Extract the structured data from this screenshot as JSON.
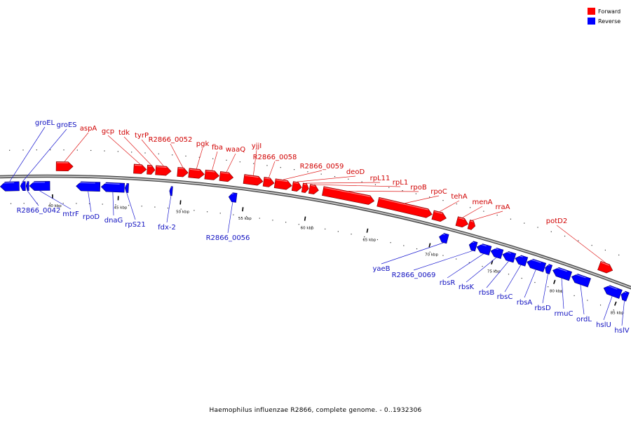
{
  "legend": {
    "forward_label": "Forward",
    "reverse_label": "Reverse"
  },
  "colors": {
    "forward": "#ff0000",
    "reverse": "#0000ff",
    "forward_line": "#e01a1a",
    "reverse_line": "#1a1ad0",
    "backbone": "#777777"
  },
  "caption": "Haemophilus influenzae R2866, complete genome. - 0..1932306",
  "axis_ticks": [
    "40 kbp",
    "45 kbp",
    "50 kbp",
    "55 kbp",
    "60 kbp",
    "65 kbp",
    "70 kbp",
    "75 kbp",
    "80 kbp",
    "85 kbp"
  ],
  "forward_genes": [
    "aspA",
    "gcp",
    "tdk",
    "tyrP",
    "R2866_0052",
    "pgk",
    "fba",
    "waaQ",
    "yjjI",
    "R2866_0058",
    "R2866_0059",
    "deoD",
    "rpL11",
    "rpL1",
    "rpoB",
    "rpoC",
    "tehA",
    "menA",
    "rraA",
    "potD2"
  ],
  "reverse_genes": [
    "groEL",
    "groES",
    "R2866_0042",
    "mtrF",
    "rpoD",
    "dnaG",
    "rpS21",
    "fdx-2",
    "R2866_0056",
    "yaeB",
    "R2866_0069",
    "rbsR",
    "rbsK",
    "rbsB",
    "rbsC",
    "rbsA",
    "rbsD",
    "rmuC",
    "ordL",
    "hslU",
    "hslV"
  ]
}
